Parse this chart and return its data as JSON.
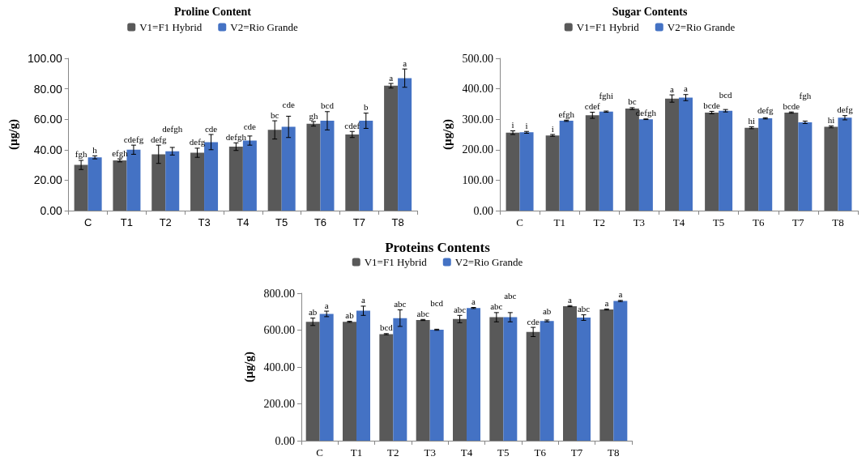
{
  "chart_data": [
    {
      "type": "bar",
      "title": "Proline Content",
      "ylabel": "(µg/g)",
      "categories": [
        "C",
        "T1",
        "T2",
        "T3",
        "T4",
        "T5",
        "T6",
        "T7",
        "T8"
      ],
      "legend": "top",
      "ylim": [
        0,
        100
      ],
      "yticks": [
        {
          "value": 0,
          "label": "0.00"
        },
        {
          "value": 20,
          "label": "20.00"
        },
        {
          "value": 40,
          "label": "40.00"
        },
        {
          "value": 60,
          "label": "60.00"
        },
        {
          "value": 80,
          "label": "80.00"
        },
        {
          "value": 100,
          "label": "100.00"
        }
      ],
      "series": [
        {
          "name": "V1=F1 Hybrid",
          "color": "#595959",
          "values": [
            30,
            33,
            37,
            38,
            42,
            53,
            57,
            50,
            82
          ],
          "errors": [
            3,
            1,
            6,
            3,
            2.5,
            6,
            1.5,
            2,
            1.5
          ],
          "value_labels": [
            "fgh",
            "efgh",
            "defg",
            "defg",
            "defgh",
            "bc",
            "gh",
            "cdef",
            "a"
          ]
        },
        {
          "name": "V2=Rio Grande",
          "color": "#4472c4",
          "values": [
            35,
            40,
            39,
            45,
            46,
            55,
            59,
            59,
            87
          ],
          "errors": [
            1,
            3,
            2.5,
            5,
            3,
            7,
            6,
            5,
            6
          ],
          "value_labels": [
            "h",
            "cdefg",
            "defgh",
            "cde",
            "cde",
            "cde",
            "bcd",
            "b",
            "a"
          ]
        }
      ]
    },
    {
      "type": "bar",
      "title": "Sugar Contents",
      "ylabel": "(µg/g)",
      "categories": [
        "C",
        "T1",
        "T2",
        "T3",
        "T4",
        "T5",
        "T6",
        "T7",
        "T8"
      ],
      "legend": "top",
      "ylim": [
        0,
        500
      ],
      "yticks": [
        {
          "value": 0,
          "label": "0.00"
        },
        {
          "value": 100,
          "label": "100.00"
        },
        {
          "value": 200,
          "label": "200.00"
        },
        {
          "value": 300,
          "label": "300.00"
        },
        {
          "value": 400,
          "label": "400.00"
        },
        {
          "value": 500,
          "label": "500.00"
        }
      ],
      "series": [
        {
          "name": "V1=F1 Hybrid",
          "color": "#595959",
          "values": [
            256,
            247,
            313,
            335,
            368,
            322,
            272,
            322,
            275
          ],
          "errors": [
            6,
            3,
            10,
            3,
            12,
            4,
            3,
            2,
            3
          ],
          "value_labels": [
            "i",
            "i",
            "cdef",
            "bc",
            "a",
            "bcde",
            "hi",
            "bcde",
            "hi"
          ]
        },
        {
          "name": "V2=Rio Grande",
          "color": "#4472c4",
          "values": [
            257,
            295,
            325,
            300,
            371,
            328,
            303,
            290,
            305
          ],
          "errors": [
            3,
            2,
            2,
            1,
            10,
            4,
            2,
            4,
            7
          ],
          "value_labels": [
            "i",
            "efgh",
            "fghi",
            "defgh",
            "a",
            "bcd",
            "defg",
            "fgh",
            "defg"
          ]
        }
      ]
    },
    {
      "type": "bar",
      "title": "Proteins Contents",
      "ylabel": "(µg/g)",
      "categories": [
        "C",
        "T1",
        "T2",
        "T3",
        "T4",
        "T5",
        "T6",
        "T7",
        "T8"
      ],
      "legend": "top",
      "ylim": [
        0,
        800
      ],
      "yticks": [
        {
          "value": 0,
          "label": "0.00"
        },
        {
          "value": 200,
          "label": "200.00"
        },
        {
          "value": 400,
          "label": "400.00"
        },
        {
          "value": 600,
          "label": "600.00"
        },
        {
          "value": 800,
          "label": "800.00"
        }
      ],
      "series": [
        {
          "name": "V1=F1 Hybrid",
          "color": "#595959",
          "values": [
            645,
            645,
            578,
            655,
            660,
            670,
            590,
            730,
            712
          ],
          "errors": [
            20,
            3,
            3,
            3,
            20,
            25,
            25,
            3,
            3
          ],
          "value_labels": [
            "ab",
            "ab",
            "bcd",
            "abc",
            "abc",
            "abc",
            "cde",
            "a",
            "a"
          ]
        },
        {
          "name": "V2=Rio Grande",
          "color": "#4472c4",
          "values": [
            688,
            705,
            665,
            602,
            720,
            670,
            650,
            668,
            758
          ],
          "errors": [
            15,
            25,
            45,
            3,
            3,
            25,
            5,
            15,
            3
          ],
          "value_labels": [
            "a",
            "a",
            "abc",
            "bcd",
            "a",
            "abc",
            "ab",
            "abc",
            "a"
          ]
        }
      ]
    }
  ]
}
